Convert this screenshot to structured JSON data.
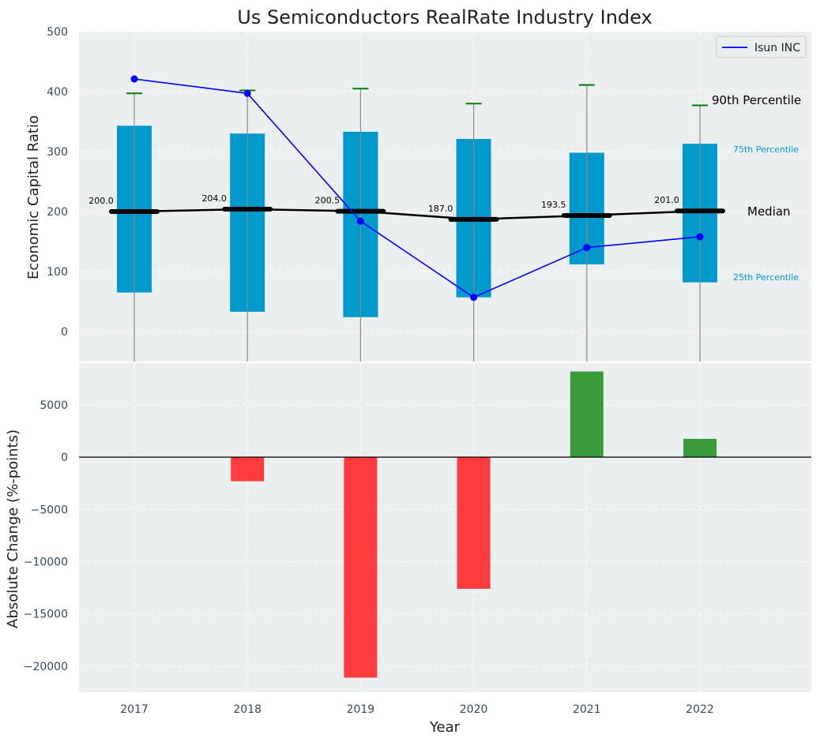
{
  "chart_data": [
    {
      "type": "box",
      "title": "Us Semiconductors RealRate Industry Index",
      "ylabel": "Economic Capital Ratio",
      "ylim": [
        -50,
        500
      ],
      "yticks": [
        0,
        100,
        200,
        300,
        400,
        500
      ],
      "categories": [
        "2017",
        "2018",
        "2019",
        "2020",
        "2021",
        "2022"
      ],
      "p25": [
        65,
        33,
        24,
        57,
        112,
        82
      ],
      "p75": [
        343,
        330,
        333,
        321,
        298,
        313
      ],
      "p90": [
        397,
        402,
        405,
        380,
        411,
        377
      ],
      "median": [
        200.0,
        204.0,
        200.5,
        187.0,
        193.5,
        201.0
      ],
      "median_labels": [
        "200.0",
        "204.0",
        "200.5",
        "187.0",
        "193.5",
        "201.0"
      ],
      "series": [
        {
          "name": "Isun INC",
          "values": [
            421,
            397,
            184,
            57,
            140,
            158
          ]
        }
      ],
      "annotations": {
        "p90": "90th Percentile",
        "p75": "75th Percentile",
        "median": "Median",
        "p25": "25th Percentile"
      },
      "legend": "top-right",
      "grid": true,
      "colors": {
        "box": "#0099cc",
        "series": "#0000ff",
        "median": "#000000",
        "whisker": "#008000",
        "background": "#ebeff0"
      }
    },
    {
      "type": "bar",
      "ylabel": "Absolute Change (%-points)",
      "xlabel": "Year",
      "ylim": [
        -22500,
        9000
      ],
      "yticks": [
        -20000,
        -15000,
        -10000,
        -5000,
        0,
        5000
      ],
      "ytick_labels": [
        "−20000",
        "−15000",
        "−10000",
        "−5000",
        "0",
        "5000"
      ],
      "categories": [
        "2017",
        "2018",
        "2019",
        "2020",
        "2021",
        "2022"
      ],
      "values": [
        0,
        -2300,
        -21100,
        -12600,
        8200,
        1750
      ],
      "grid": true,
      "colors": {
        "positive": "#3a9b3a",
        "negative": "#ff3b3b"
      }
    }
  ]
}
